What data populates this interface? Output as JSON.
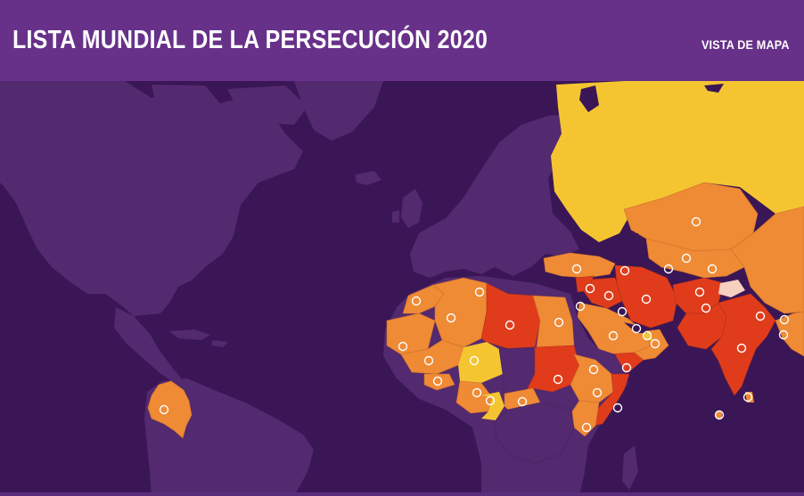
{
  "header": {
    "title": "LISTA MUNDIAL DE LA PERSECUCIÓN 2020",
    "view_link": "VISTA DE MAPA"
  },
  "colors": {
    "header_bg": "#673189",
    "ocean": "#3a1656",
    "land_neutral": "#53296f",
    "extreme": "#e03c1c",
    "very_high": "#ef8a35",
    "high": "#f4c531",
    "marker_fill": "none",
    "marker_stroke": "#ffffff"
  },
  "legend_levels": [
    "extreme",
    "very_high",
    "high"
  ]
}
